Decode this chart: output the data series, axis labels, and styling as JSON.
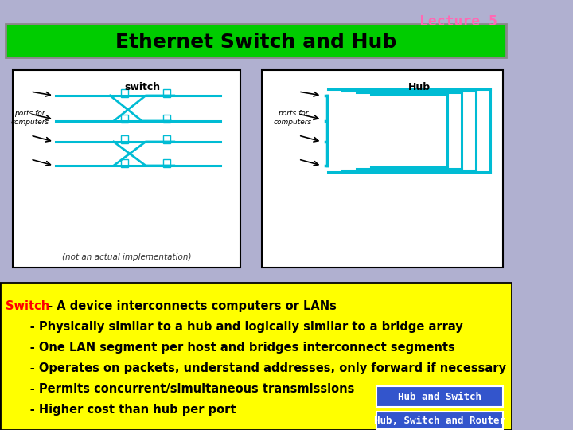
{
  "title": "Ethernet Switch and Hub",
  "lecture_label": "Lecture 5",
  "bg_color": "#b0b0d0",
  "title_bg": "#00cc00",
  "title_text_color": "#000000",
  "lecture_color": "#ff69b4",
  "bottom_panel_color": "#ffff00",
  "bottom_border_color": "#000000",
  "switch_label_color": "#ff0000",
  "bullet_text_color": "#000000",
  "diagram_bg": "#ffffff",
  "diagram_border": "#000000",
  "cyan_color": "#00bcd4",
  "bullets": [
    " - A device interconnects computers or LANs",
    "      - Physically similar to a hub and logically similar to a bridge array",
    "      - One LAN segment per host and bridges interconnect segments",
    "      - Operates on packets, understand addresses, only forward if necessary",
    "      - Permits concurrent/simultaneous transmissions",
    "      - Higher cost than hub per port"
  ],
  "btn1_text": "Hub and Switch",
  "btn1_color": "#3355cc",
  "btn2_text": "Hub, Switch and Router",
  "btn2_color": "#3355cc",
  "not_actual_text": "(not an actual implementation)",
  "switch_diagram_label": "switch",
  "hub_diagram_label": "Hub",
  "ports_label": "ports for\ncomputers"
}
